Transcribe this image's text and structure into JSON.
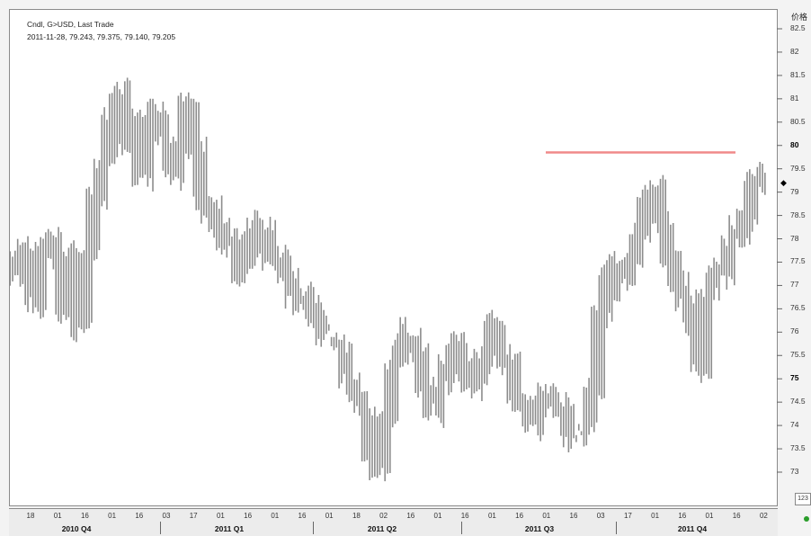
{
  "header": {
    "title": "Cndl, G>USD, Last Trade",
    "ohlc": "2011-11-28, 79.243, 79.375, 79.140, 79.205"
  },
  "axis": {
    "title": "价格",
    "last_marker": "◆",
    "ticks": [
      "82.5",
      "82",
      "81.5",
      "81",
      "80.5",
      "80",
      "79.5",
      "79",
      "78.5",
      "78",
      "77.5",
      "77",
      "76.5",
      "76",
      "75.5",
      "75",
      "74.5",
      "74",
      "73.5",
      "73"
    ],
    "major_ticks": [
      "80",
      "75"
    ]
  },
  "timebar": {
    "days": [
      "18",
      "01",
      "16",
      "01",
      "16",
      "03",
      "17",
      "01",
      "16",
      "01",
      "16",
      "01",
      "18",
      "02",
      "16",
      "01",
      "16",
      "01",
      "16",
      "01",
      "16",
      "03",
      "17",
      "01",
      "16",
      "01",
      "16",
      "02"
    ],
    "quarters": [
      "2010 Q4",
      "2011 Q1",
      "2011 Q2",
      "2011 Q3",
      "2011 Q4"
    ]
  },
  "controls": {
    "corner_button": "123"
  },
  "colors": {
    "bars": "#8c8c8c",
    "resistance": "#f08a8a",
    "frame": "#8a8a8a"
  },
  "chart_data": {
    "type": "line",
    "title": "Cndl, G>USD, Last Trade",
    "ylim": [
      72.6,
      82.8
    ],
    "grid": false,
    "x_labels": [
      "2010 Q4",
      "2011 Q1",
      "2011 Q2",
      "2011 Q3",
      "2011 Q4"
    ],
    "series": [
      {
        "values": [
          77.5,
          77.2,
          77.8,
          76.6,
          77.9,
          78.0,
          77.5,
          76.4,
          77.8,
          76.1,
          77.8,
          78.9,
          79.5,
          80.6,
          81.2,
          79.9,
          80.5,
          79.3,
          80.4,
          80.7,
          80.1,
          79.4,
          79.8,
          81.0,
          80.0,
          78.8,
          78.6,
          78.2,
          77.8,
          78.1,
          77.3,
          77.6,
          78.2,
          78.3,
          77.5,
          77.6,
          77.2,
          76.7,
          76.9,
          76.5,
          76.2,
          76.0,
          75.9,
          75.5,
          75.0,
          74.6,
          74.3,
          73.3,
          73.0,
          74.2,
          75.3,
          75.8,
          76.0,
          75.6,
          74.7,
          74.3,
          74.8,
          75.4,
          75.8,
          75.3,
          74.8,
          75.0,
          75.5,
          76.2,
          75.3,
          75.4,
          74.6,
          74.5,
          74.0,
          74.4,
          74.7,
          74.5,
          74.3,
          73.9,
          73.8,
          73.9,
          74.8,
          76.3,
          77.2,
          77.5,
          77.0,
          77.5,
          78.1,
          78.9,
          79.2,
          78.3,
          77.6,
          77.0,
          76.6,
          76.3,
          75.2,
          76.8,
          77.3,
          77.2,
          77.9,
          78.2,
          78.4,
          79.3,
          79.2
        ]
      }
    ],
    "annotations": [
      {
        "type": "horizontal_line",
        "y": 79.85,
        "color": "#f08a8a"
      }
    ]
  }
}
